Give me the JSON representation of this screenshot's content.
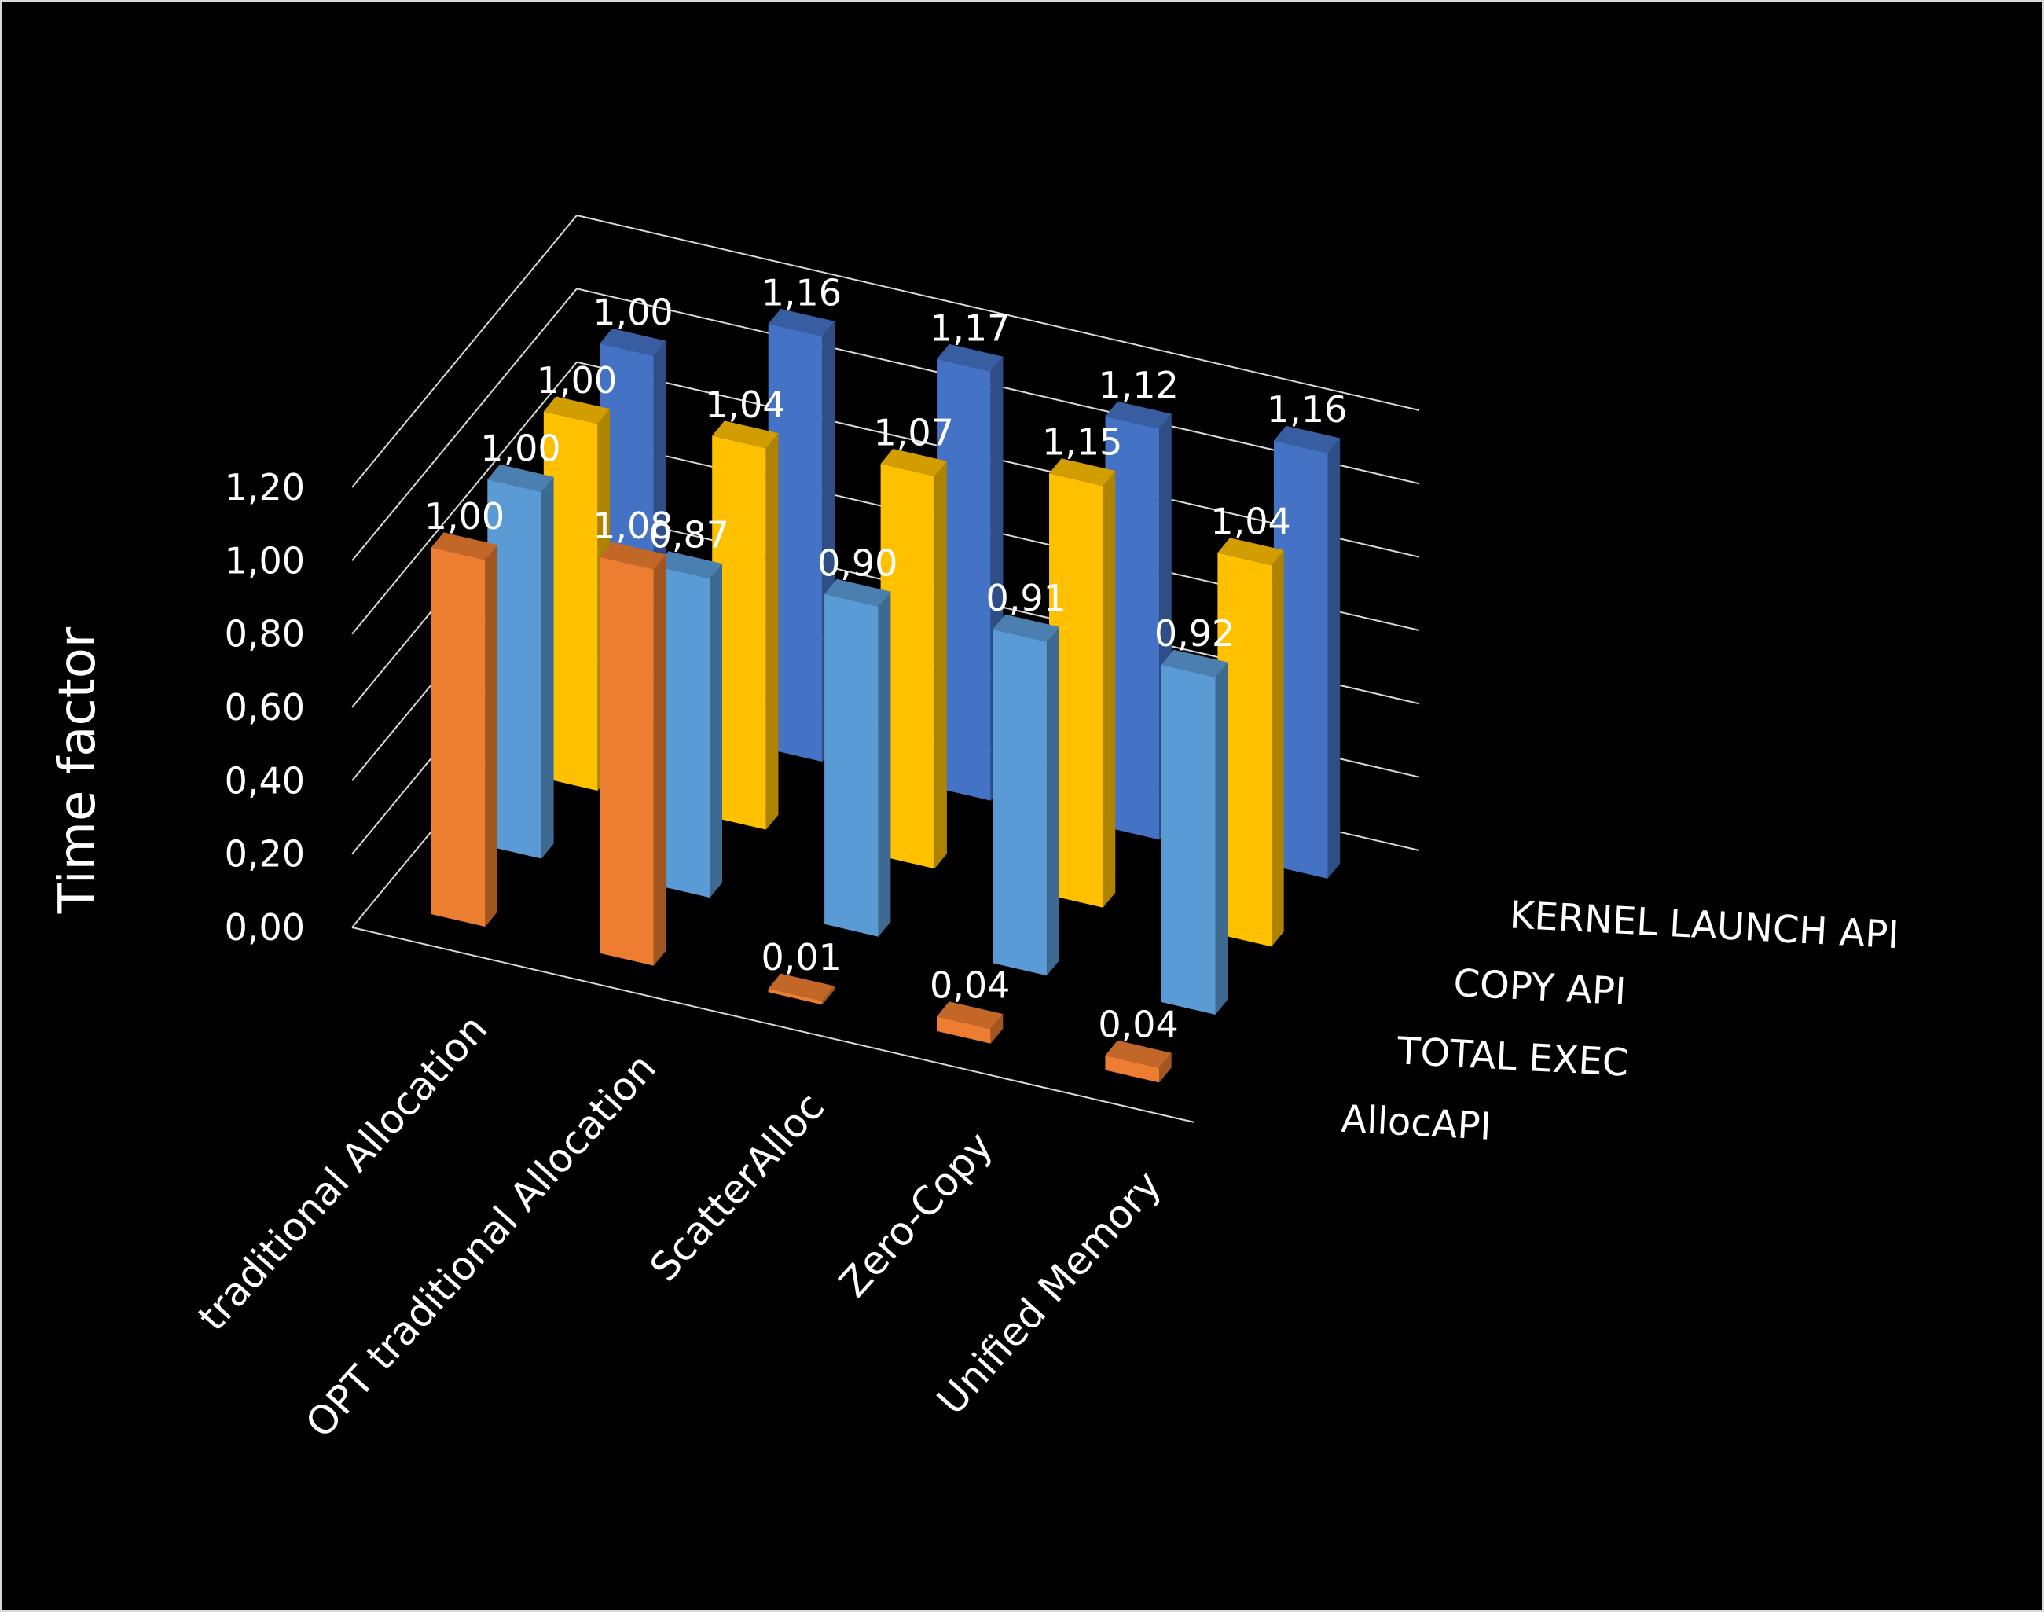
{
  "chart_data": {
    "type": "bar",
    "subtype": "3d-column",
    "title": "",
    "ylabel": "Time factor",
    "ylim": [
      0,
      1.2
    ],
    "yticks": [
      "0,00",
      "0,20",
      "0,40",
      "0,60",
      "0,80",
      "1,00",
      "1,20"
    ],
    "grid": true,
    "categories": [
      "traditional Allocation",
      "OPT traditional Allocation",
      "ScatterAlloc",
      "Zero-Copy",
      "Unified Memory"
    ],
    "series": [
      {
        "name": "AllocAPI",
        "values": [
          1.0,
          1.08,
          0.01,
          0.04,
          0.04
        ],
        "labels": [
          "1,00",
          "1,08",
          "0,01",
          "0,04",
          "0,04"
        ],
        "color": "#ED7D31"
      },
      {
        "name": "TOTAL EXEC",
        "values": [
          1.0,
          0.87,
          0.9,
          0.91,
          0.92
        ],
        "labels": [
          "1,00",
          "0,87",
          "0,90",
          "0,91",
          "0,92"
        ],
        "color": "#5B9BD5"
      },
      {
        "name": "COPY API",
        "values": [
          1.0,
          1.04,
          1.07,
          1.15,
          1.04
        ],
        "labels": [
          "1,00",
          "1,04",
          "1,07",
          "1,15",
          "1,04"
        ],
        "color": "#FFC000"
      },
      {
        "name": "KERNEL LAUNCH API",
        "values": [
          1.0,
          1.16,
          1.17,
          1.12,
          1.16
        ],
        "labels": [
          "1,00",
          "1,16",
          "1,17",
          "1,12",
          "1,16"
        ],
        "color": "#4472C4"
      }
    ]
  }
}
